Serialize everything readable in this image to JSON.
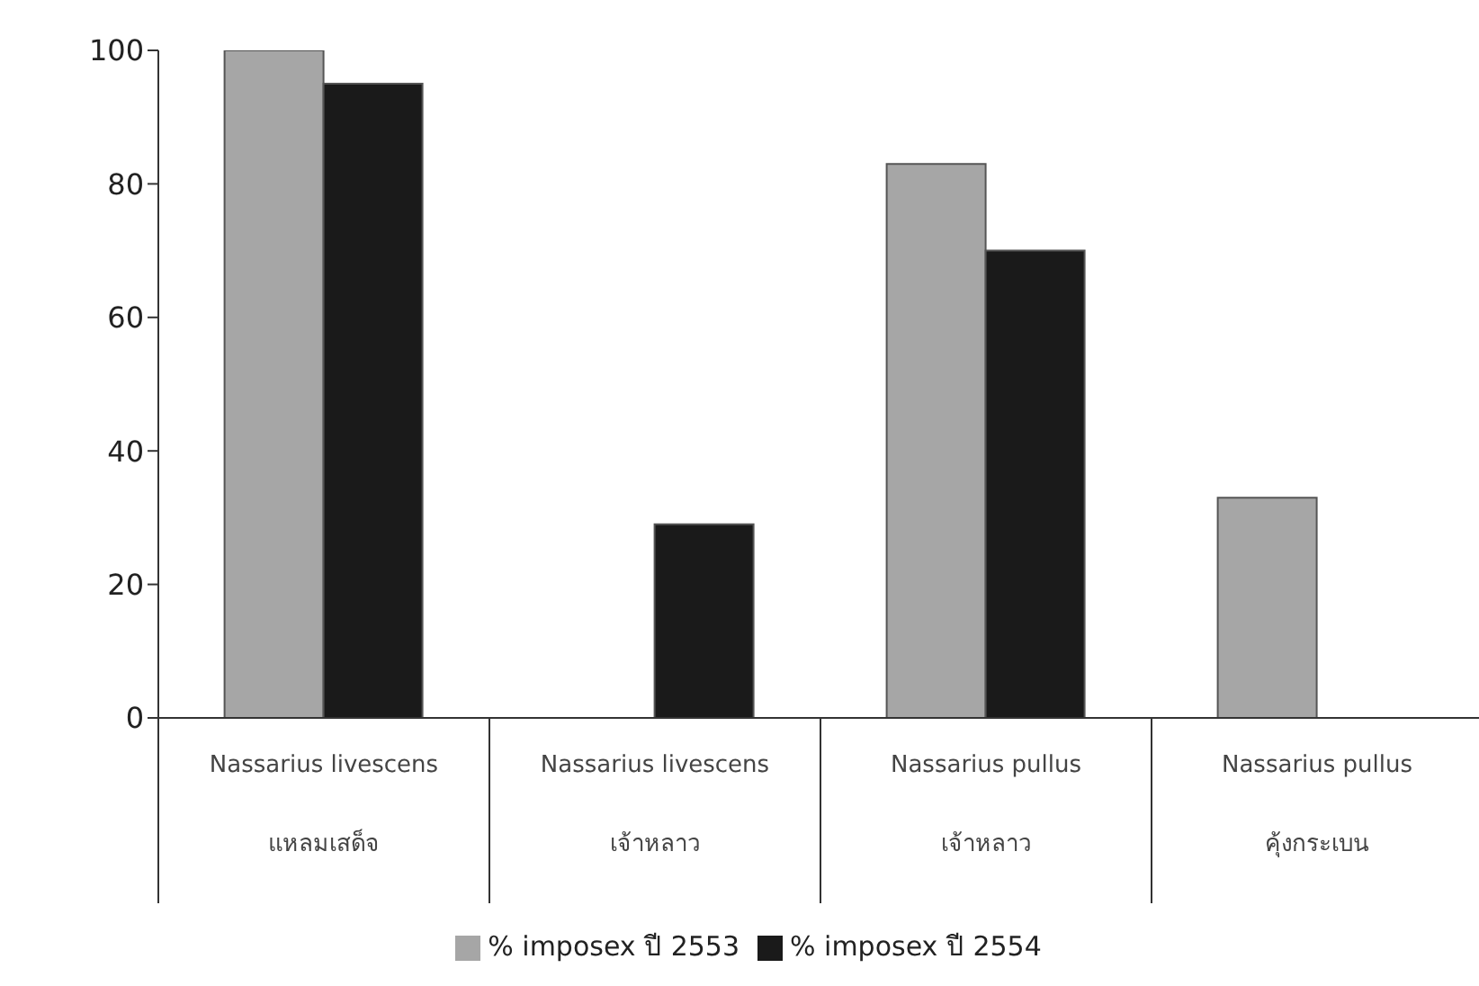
{
  "chart_data": {
    "type": "bar",
    "categories": [
      "Nassarius livescens\nแหลมเสด็จ",
      "Nassarius livescens\nเจ้าหลาว",
      "Nassarius pullus\nเจ้าหลาว",
      "Nassarius pullus\nคุ้งกระเบน"
    ],
    "series": [
      {
        "name": "% imposex ปี 2553",
        "color": "#a6a6a6",
        "values": [
          100,
          null,
          83,
          33
        ]
      },
      {
        "name": "% imposex ปี 2554",
        "color": "#1a1a1a",
        "values": [
          95,
          29,
          70,
          null
        ]
      }
    ],
    "ylim": [
      0,
      100
    ],
    "yticks": [
      0,
      20,
      40,
      60,
      80,
      100
    ],
    "grid": false,
    "legend": "bottom"
  }
}
